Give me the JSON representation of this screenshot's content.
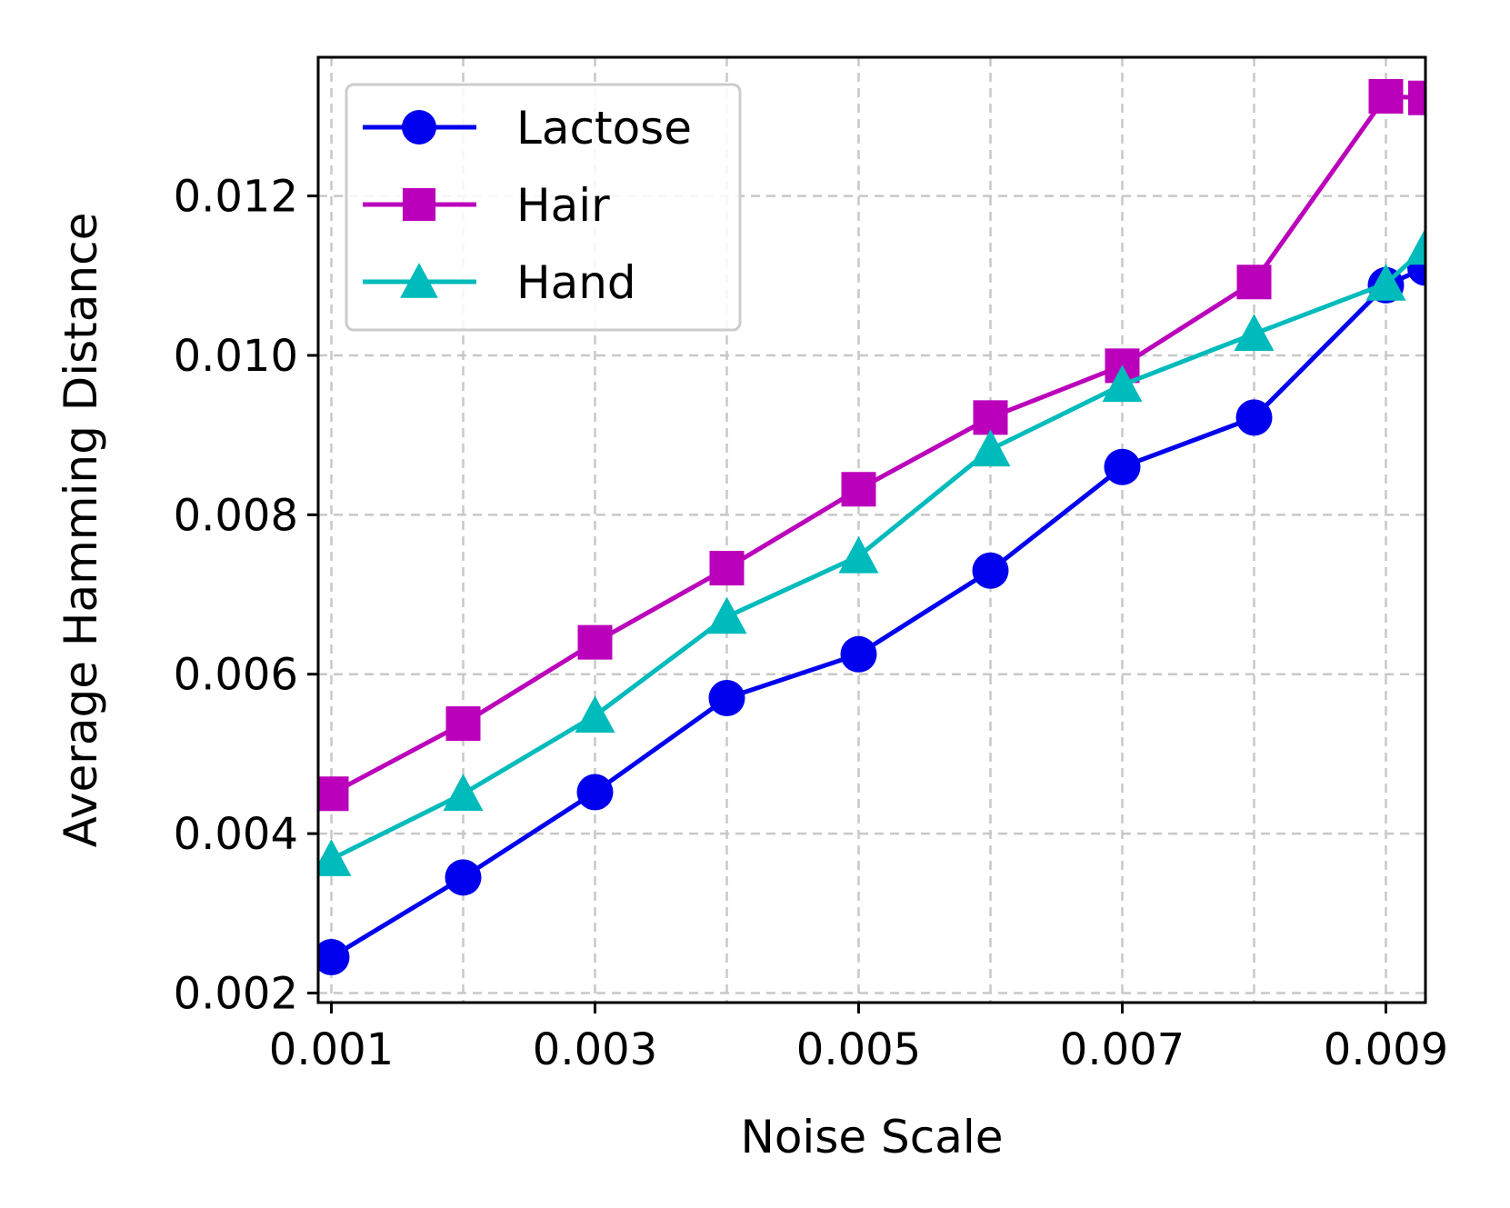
{
  "chart_data": {
    "type": "line",
    "xlabel": "Noise Scale",
    "ylabel": "Average Hamming Distance",
    "x": [
      0.001,
      0.002,
      0.003,
      0.004,
      0.005,
      0.006,
      0.007,
      0.008,
      0.009,
      0.0093
    ],
    "xlim": [
      0.0009,
      0.0093
    ],
    "ylim": [
      0.00188,
      0.01374
    ],
    "x_ticks": [
      "0.001",
      "0.003",
      "0.005",
      "0.007",
      "0.009"
    ],
    "x_tick_values": [
      0.001,
      0.003,
      0.005,
      0.007,
      0.009
    ],
    "x_grid_values": [
      0.001,
      0.002,
      0.003,
      0.004,
      0.005,
      0.006,
      0.007,
      0.008,
      0.009
    ],
    "y_ticks": [
      "0.002",
      "0.004",
      "0.006",
      "0.008",
      "0.010",
      "0.012"
    ],
    "y_tick_values": [
      0.002,
      0.004,
      0.006,
      0.008,
      0.01,
      0.012
    ],
    "grid": true,
    "legend_position": "top-left",
    "series": [
      {
        "name": "Lactose",
        "color": "#0000ee",
        "marker": "circle",
        "values": [
          0.00245,
          0.00345,
          0.00452,
          0.0057,
          0.00625,
          0.0073,
          0.0086,
          0.00922,
          0.01088,
          0.0111
        ]
      },
      {
        "name": "Hair",
        "color": "#bb00bb",
        "marker": "square",
        "values": [
          0.0045,
          0.00538,
          0.0064,
          0.00733,
          0.00832,
          0.00922,
          0.00987,
          0.01092,
          0.01325,
          0.01323
        ]
      },
      {
        "name": "Hand",
        "color": "#00bbbb",
        "marker": "triangle",
        "values": [
          0.00368,
          0.0045,
          0.00548,
          0.00672,
          0.00748,
          0.00882,
          0.00963,
          0.01027,
          0.0109,
          0.01135
        ]
      }
    ]
  }
}
